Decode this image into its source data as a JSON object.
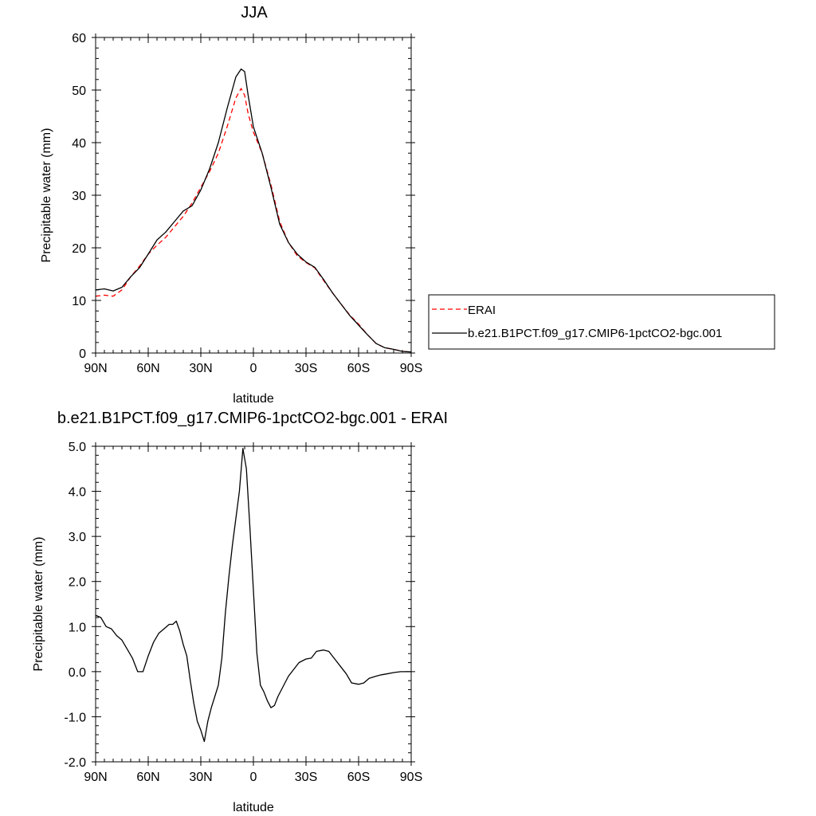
{
  "chart_data": [
    {
      "type": "line",
      "title": "JJA",
      "xlabel": "latitude",
      "ylabel": "Precipitable water (mm)",
      "xlim": [
        90,
        -90
      ],
      "ylim": [
        0,
        60
      ],
      "x_ticks": [
        90,
        60,
        30,
        0,
        -30,
        -60,
        -90
      ],
      "x_tick_labels": [
        "90N",
        "60N",
        "30N",
        "0",
        "30S",
        "60S",
        "90S"
      ],
      "y_ticks": [
        0,
        10,
        20,
        30,
        40,
        50,
        60
      ],
      "y_tick_labels": [
        "0",
        "10",
        "20",
        "30",
        "40",
        "50",
        "60"
      ],
      "grid": false,
      "legend_position": "right",
      "series": [
        {
          "name": "ERAI",
          "color": "#ff0000",
          "dash": "dashed",
          "x": [
            90,
            85,
            80,
            75,
            70,
            65,
            60,
            55,
            50,
            45,
            40,
            35,
            30,
            25,
            20,
            15,
            10,
            7,
            5,
            3,
            0,
            -5,
            -10,
            -15,
            -20,
            -25,
            -30,
            -35,
            -40,
            -45,
            -50,
            -55,
            -60,
            -65,
            -70,
            -75,
            -80,
            -85,
            -90
          ],
          "values": [
            10.8,
            11.0,
            10.8,
            12.0,
            14.5,
            16.5,
            18.8,
            20.5,
            22.0,
            24.0,
            26.0,
            28.5,
            31.5,
            34.5,
            38.0,
            43.0,
            48.5,
            50.3,
            49.0,
            45.5,
            42.0,
            38.0,
            32.0,
            25.0,
            21.0,
            18.5,
            17.2,
            16.2,
            13.8,
            11.5,
            9.3,
            7.2,
            5.5,
            3.5,
            1.8,
            1.0,
            0.7,
            0.3,
            0.2
          ]
        },
        {
          "name": "b.e21.B1PCT.f09_g17.CMIP6-1pctCO2-bgc.001",
          "color": "#000000",
          "dash": "solid",
          "x": [
            90,
            85,
            80,
            75,
            70,
            65,
            60,
            55,
            50,
            45,
            40,
            35,
            30,
            25,
            20,
            15,
            10,
            7,
            5,
            3,
            0,
            -5,
            -10,
            -15,
            -20,
            -25,
            -30,
            -35,
            -40,
            -45,
            -50,
            -55,
            -60,
            -65,
            -70,
            -75,
            -80,
            -85,
            -90
          ],
          "values": [
            12.0,
            12.2,
            11.8,
            12.5,
            14.5,
            16.2,
            18.8,
            21.5,
            23.0,
            25.0,
            27.0,
            28.0,
            31.0,
            35.0,
            40.0,
            46.5,
            52.5,
            54.0,
            53.5,
            49.0,
            43.0,
            38.0,
            31.5,
            24.5,
            21.0,
            18.8,
            17.3,
            16.3,
            14.0,
            11.5,
            9.3,
            7.1,
            5.3,
            3.5,
            1.8,
            1.0,
            0.7,
            0.3,
            0.2
          ]
        }
      ]
    },
    {
      "type": "line",
      "title": "b.e21.B1PCT.f09_g17.CMIP6-1pctCO2-bgc.001 - ERAI",
      "xlabel": "latitude",
      "ylabel": "Precipitable water (mm)",
      "xlim": [
        90,
        -90
      ],
      "ylim": [
        -2.0,
        5.0
      ],
      "x_ticks": [
        90,
        60,
        30,
        0,
        -30,
        -60,
        -90
      ],
      "x_tick_labels": [
        "90N",
        "60N",
        "30N",
        "0",
        "30S",
        "60S",
        "90S"
      ],
      "y_ticks": [
        -2.0,
        -1.0,
        0.0,
        1.0,
        2.0,
        3.0,
        4.0,
        5.0
      ],
      "y_tick_labels": [
        "-2.0",
        "-1.0",
        "0.0",
        "1.0",
        "2.0",
        "3.0",
        "4.0",
        "5.0"
      ],
      "grid": false,
      "series": [
        {
          "color": "#000000",
          "dash": "solid",
          "x": [
            90,
            87,
            84,
            81,
            78,
            75,
            72,
            69,
            66,
            63,
            60,
            57,
            54,
            51,
            48,
            46,
            44,
            42,
            40,
            38,
            36,
            34,
            32,
            30,
            28,
            26,
            24,
            22,
            20,
            18,
            16,
            14,
            12,
            10,
            8,
            6,
            4,
            2,
            0,
            -2,
            -4,
            -6,
            -8,
            -10,
            -12,
            -14,
            -16,
            -18,
            -20,
            -23,
            -26,
            -30,
            -33,
            -36,
            -40,
            -43,
            -46,
            -50,
            -53,
            -56,
            -60,
            -63,
            -66,
            -70,
            -73,
            -76,
            -80,
            -84,
            -87,
            -90
          ],
          "values": [
            1.25,
            1.2,
            1.0,
            0.95,
            0.8,
            0.7,
            0.5,
            0.3,
            0.0,
            0.0,
            0.35,
            0.65,
            0.85,
            0.95,
            1.05,
            1.05,
            1.12,
            0.9,
            0.6,
            0.35,
            -0.2,
            -0.7,
            -1.1,
            -1.3,
            -1.55,
            -1.1,
            -0.8,
            -0.55,
            -0.3,
            0.3,
            1.3,
            2.1,
            2.8,
            3.4,
            4.0,
            4.95,
            4.5,
            3.2,
            1.8,
            0.4,
            -0.3,
            -0.45,
            -0.65,
            -0.8,
            -0.75,
            -0.55,
            -0.4,
            -0.25,
            -0.1,
            0.05,
            0.2,
            0.28,
            0.3,
            0.45,
            0.48,
            0.45,
            0.3,
            0.1,
            -0.05,
            -0.25,
            -0.28,
            -0.25,
            -0.15,
            -0.1,
            -0.07,
            -0.05,
            -0.02,
            0.0,
            0.0,
            0.0
          ]
        }
      ]
    }
  ]
}
